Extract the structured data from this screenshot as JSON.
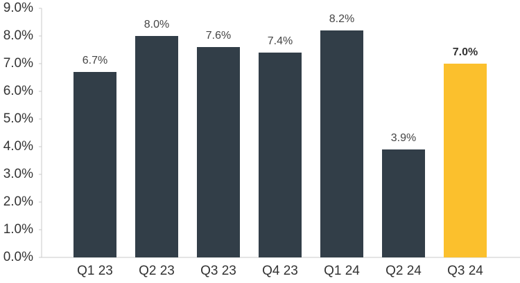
{
  "chart_data": {
    "type": "bar",
    "categories": [
      "Q1 23",
      "Q2 23",
      "Q3 23",
      "Q4 23",
      "Q1 24",
      "Q2 24",
      "Q3 24"
    ],
    "values": [
      6.7,
      8.0,
      7.6,
      7.4,
      8.2,
      3.9,
      7.0
    ],
    "value_labels": [
      "6.7%",
      "8.0%",
      "7.6%",
      "7.4%",
      "8.2%",
      "3.9%",
      "7.0%"
    ],
    "value_label_bold": [
      false,
      false,
      false,
      false,
      false,
      false,
      true
    ],
    "colors": [
      "#323e48",
      "#323e48",
      "#323e48",
      "#323e48",
      "#323e48",
      "#323e48",
      "#fbc02d"
    ],
    "ylim": [
      0,
      9
    ],
    "yticks": [
      {
        "value": 0,
        "label": "0.0%"
      },
      {
        "value": 1,
        "label": "1.0%"
      },
      {
        "value": 2,
        "label": "2.0%"
      },
      {
        "value": 3,
        "label": "3.0%"
      },
      {
        "value": 4,
        "label": "4.0%"
      },
      {
        "value": 5,
        "label": "5.0%"
      },
      {
        "value": 6,
        "label": "6.0%"
      },
      {
        "value": 7,
        "label": "7.0%"
      },
      {
        "value": 8,
        "label": "8.0%"
      },
      {
        "value": 9,
        "label": "9.0%"
      }
    ],
    "grid": false
  }
}
